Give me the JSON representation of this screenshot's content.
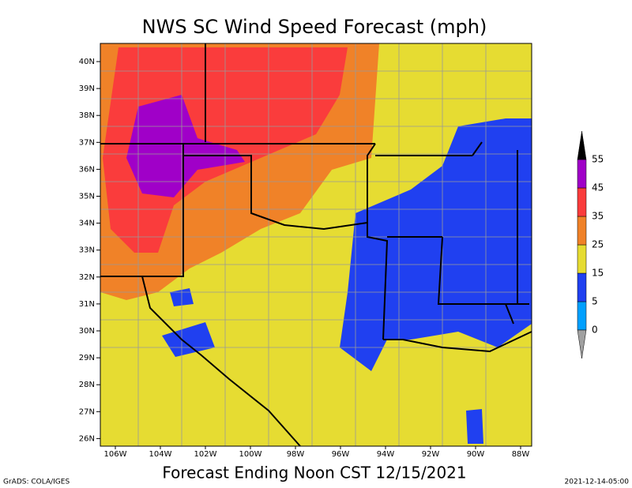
{
  "title": "NWS SC Wind Speed Forecast (mph)",
  "subtitle": "Forecast Ending Noon CST 12/15/2021",
  "credit": "GrADS: COLA/IGES",
  "timestamp": "2021-12-14-05:00",
  "lat_labels": [
    "40N",
    "39N",
    "38N",
    "37N",
    "36N",
    "35N",
    "34N",
    "33N",
    "32N",
    "31N",
    "30N",
    "29N",
    "28N",
    "27N",
    "26N"
  ],
  "lon_labels": [
    "106W",
    "104W",
    "102W",
    "100W",
    "98W",
    "96W",
    "94W",
    "92W",
    "90W",
    "88W"
  ],
  "legend": {
    "levels": [
      0,
      5,
      15,
      25,
      35,
      45,
      55
    ],
    "colors": [
      "#a0a0a0",
      "#00a0ff",
      "#2040f0",
      "#e6dc32",
      "#f08228",
      "#fa3c3c",
      "#a000c8",
      "#000000"
    ]
  }
}
